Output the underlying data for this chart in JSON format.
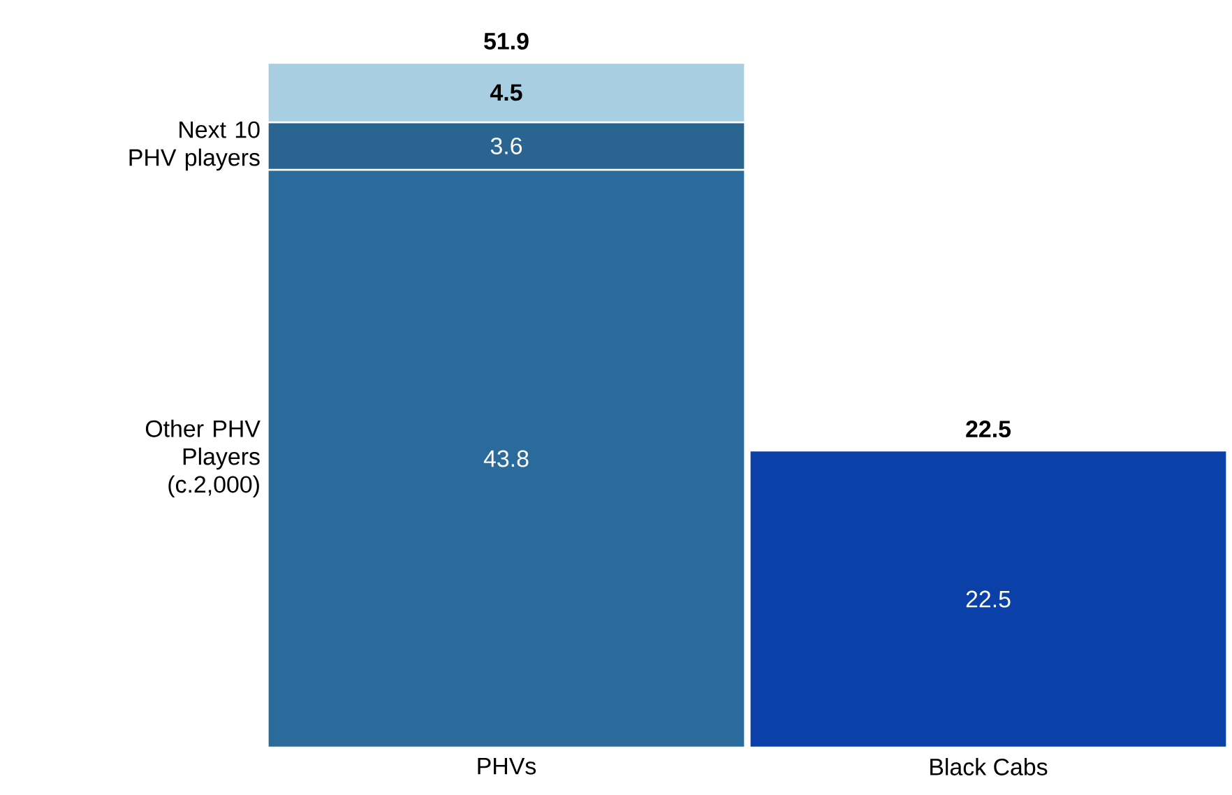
{
  "chart_data": {
    "type": "bar",
    "stacked": true,
    "categories": [
      "PHVs",
      "Black Cabs"
    ],
    "series": [
      {
        "name": "Other PHV Players (c.2,000)",
        "color": "#2b6b9b",
        "values": [
          43.8,
          null
        ]
      },
      {
        "name": "Next 10 PHV players",
        "color": "#2a6592",
        "values": [
          3.6,
          null
        ]
      },
      {
        "color": "#a8cfe1",
        "values": [
          4.5,
          null
        ]
      },
      {
        "color": "#0a40a8",
        "values": [
          null,
          22.5
        ]
      }
    ],
    "data_labels": true,
    "totals": [
      "51.9",
      "22.5"
    ]
  }
}
